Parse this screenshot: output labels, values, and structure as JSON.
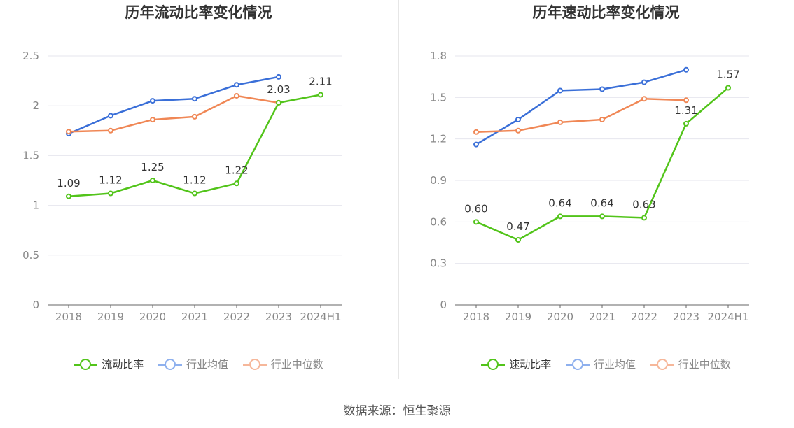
{
  "source_text": "数据来源：恒生聚源",
  "chart_data": [
    {
      "type": "line",
      "title": "历年流动比率变化情况",
      "categories": [
        "2018",
        "2019",
        "2020",
        "2021",
        "2022",
        "2023",
        "2024H1"
      ],
      "ylim": [
        0,
        2.5
      ],
      "yticks": [
        "0",
        "0.5",
        "1",
        "1.5",
        "2",
        "2.5"
      ],
      "ytick_values": [
        0,
        0.5,
        1,
        1.5,
        2,
        2.5
      ],
      "grid": true,
      "legend_position": "bottom",
      "series": [
        {
          "name": "流动比率",
          "color": "#52c41a",
          "values": [
            1.09,
            1.12,
            1.25,
            1.12,
            1.22,
            2.03,
            2.11
          ],
          "labels": [
            "1.09",
            "1.12",
            "1.25",
            "1.12",
            "1.22",
            "2.03",
            "2.11"
          ],
          "primary": true
        },
        {
          "name": "行业均值",
          "color": "#3a6fd8",
          "values": [
            1.72,
            1.9,
            2.05,
            2.07,
            2.21,
            2.29,
            null
          ]
        },
        {
          "name": "行业中位数",
          "color": "#f08755",
          "values": [
            1.74,
            1.75,
            1.86,
            1.89,
            2.1,
            2.03,
            null
          ]
        }
      ]
    },
    {
      "type": "line",
      "title": "历年速动比率变化情况",
      "categories": [
        "2018",
        "2019",
        "2020",
        "2021",
        "2022",
        "2023",
        "2024H1"
      ],
      "ylim": [
        0,
        1.8
      ],
      "yticks": [
        "0",
        "0.3",
        "0.6",
        "0.9",
        "1.2",
        "1.5",
        "1.8"
      ],
      "ytick_values": [
        0,
        0.3,
        0.6,
        0.9,
        1.2,
        1.5,
        1.8
      ],
      "grid": true,
      "legend_position": "bottom",
      "series": [
        {
          "name": "速动比率",
          "color": "#52c41a",
          "values": [
            0.6,
            0.47,
            0.64,
            0.64,
            0.63,
            1.31,
            1.57
          ],
          "labels": [
            "0.60",
            "0.47",
            "0.64",
            "0.64",
            "0.63",
            "1.31",
            "1.57"
          ],
          "primary": true
        },
        {
          "name": "行业均值",
          "color": "#3a6fd8",
          "values": [
            1.16,
            1.34,
            1.55,
            1.56,
            1.61,
            1.7,
            null
          ]
        },
        {
          "name": "行业中位数",
          "color": "#f08755",
          "values": [
            1.25,
            1.26,
            1.32,
            1.34,
            1.49,
            1.48,
            null
          ]
        }
      ]
    }
  ]
}
